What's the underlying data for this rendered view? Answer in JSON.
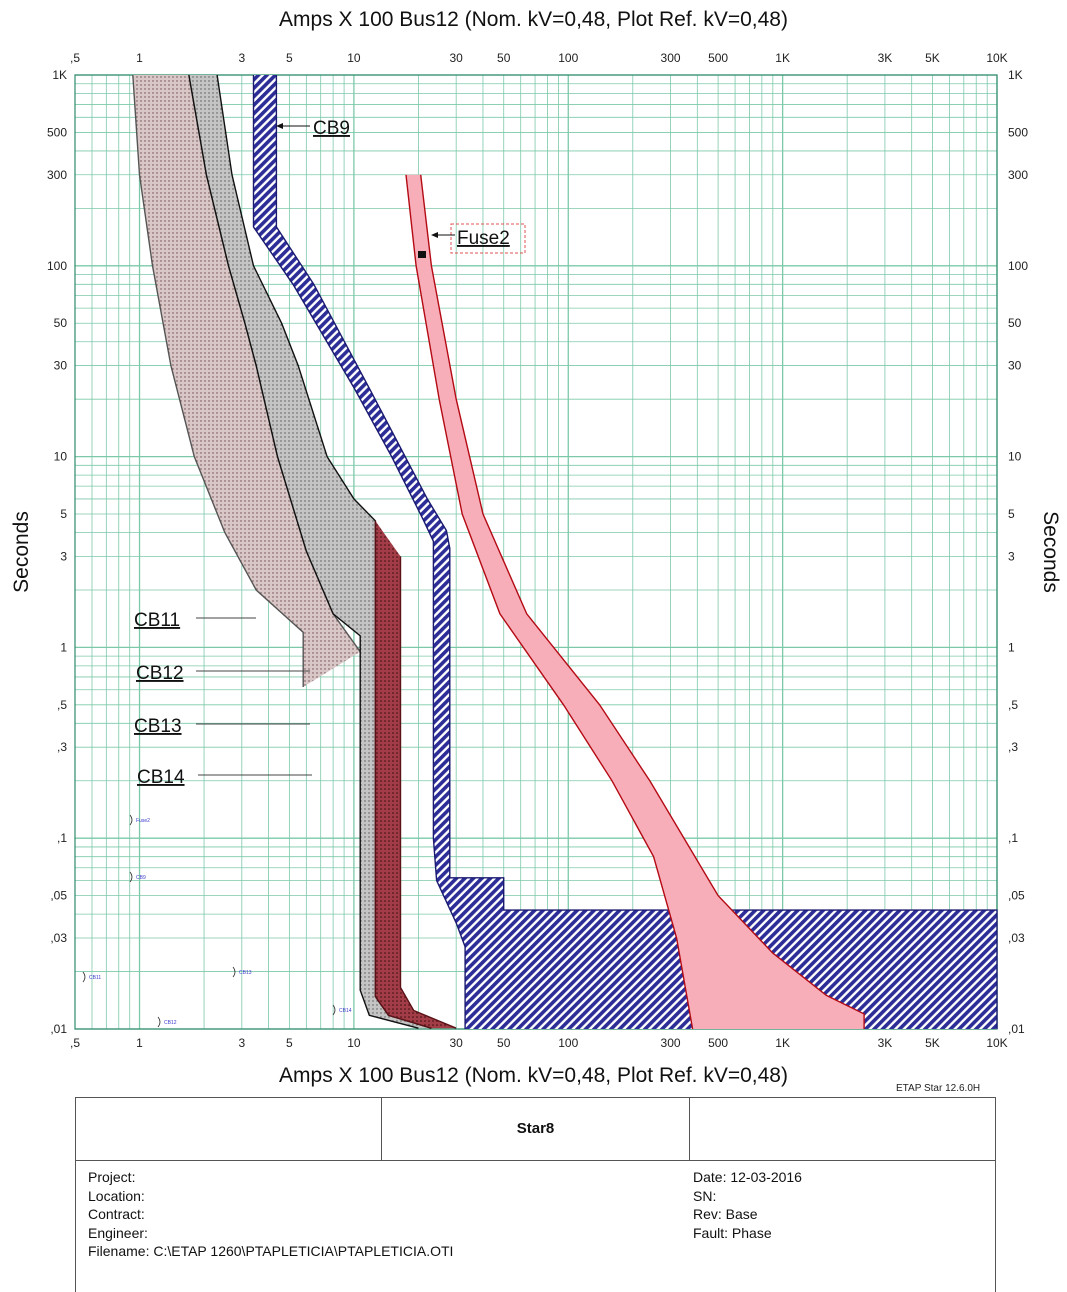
{
  "header": {
    "top_title": "Amps  X  100   Bus12 (Nom. kV=0,48, Plot Ref. kV=0,48)",
    "bottom_title": "Amps  X  100   Bus12 (Nom. kV=0,48, Plot Ref. kV=0,48)",
    "version": "ETAP Star 12.6.0H"
  },
  "chart_data": {
    "type": "line",
    "title": "Amps  X  100   Bus12 (Nom. kV=0,48, Plot Ref. kV=0,48)",
    "xlabel": "Amps  X  100",
    "ylabel": "Seconds",
    "x_scale": "log",
    "y_scale": "log",
    "xlim": [
      0.5,
      10000
    ],
    "ylim": [
      0.01,
      1000
    ],
    "grid": true,
    "x_ticks": [
      {
        "value": 0.5,
        "label": ",5"
      },
      {
        "value": 1,
        "label": "1"
      },
      {
        "value": 3,
        "label": "3"
      },
      {
        "value": 5,
        "label": "5"
      },
      {
        "value": 10,
        "label": "10"
      },
      {
        "value": 30,
        "label": "30"
      },
      {
        "value": 50,
        "label": "50"
      },
      {
        "value": 100,
        "label": "100"
      },
      {
        "value": 300,
        "label": "300"
      },
      {
        "value": 500,
        "label": "500"
      },
      {
        "value": 1000,
        "label": "1K"
      },
      {
        "value": 3000,
        "label": "3K"
      },
      {
        "value": 5000,
        "label": "5K"
      },
      {
        "value": 10000,
        "label": "10K"
      }
    ],
    "y_ticks": [
      {
        "value": 1000,
        "label": "1K"
      },
      {
        "value": 500,
        "label": "500"
      },
      {
        "value": 300,
        "label": "300"
      },
      {
        "value": 100,
        "label": "100"
      },
      {
        "value": 50,
        "label": "50"
      },
      {
        "value": 30,
        "label": "30"
      },
      {
        "value": 10,
        "label": "10"
      },
      {
        "value": 5,
        "label": "5"
      },
      {
        "value": 3,
        "label": "3"
      },
      {
        "value": 1,
        "label": "1"
      },
      {
        "value": 0.5,
        "label": ",5"
      },
      {
        "value": 0.3,
        "label": ",3"
      },
      {
        "value": 0.1,
        "label": ",1"
      },
      {
        "value": 0.05,
        "label": ",05"
      },
      {
        "value": 0.03,
        "label": ",03"
      },
      {
        "value": 0.01,
        "label": ",01"
      }
    ],
    "series": [
      {
        "name": "CB11",
        "style": "band",
        "fill": "#d7c3c3",
        "pattern": "dots",
        "stroke": "#555555",
        "upper": [
          [
            0.93,
            1000
          ],
          [
            1,
            300
          ],
          [
            1.15,
            100
          ],
          [
            1.4,
            30
          ],
          [
            1.8,
            10
          ],
          [
            2.5,
            4
          ],
          [
            3.5,
            2
          ],
          [
            5.8,
            1.2
          ],
          [
            5.8,
            0.62
          ]
        ],
        "lower": [
          [
            1.7,
            1000
          ],
          [
            2.05,
            300
          ],
          [
            2.6,
            100
          ],
          [
            3.1,
            50
          ],
          [
            3.5,
            30
          ],
          [
            4.4,
            10
          ],
          [
            6,
            3.2
          ],
          [
            8,
            1.5
          ],
          [
            10.7,
            0.95
          ],
          [
            10.7,
            0.95
          ]
        ]
      },
      {
        "name": "CB12",
        "style": "band",
        "fill": "#c9c9c9",
        "pattern": "dots",
        "stroke": "#111111",
        "upper": [
          [
            1.7,
            1000
          ],
          [
            2.05,
            300
          ],
          [
            2.6,
            100
          ],
          [
            3.1,
            50
          ],
          [
            3.5,
            30
          ],
          [
            4.4,
            10
          ],
          [
            6,
            3.2
          ],
          [
            8,
            1.5
          ],
          [
            10.7,
            1.15
          ],
          [
            10.7,
            0.016
          ],
          [
            11.8,
            0.0118
          ],
          [
            20,
            0.0101
          ]
        ],
        "lower": [
          [
            2.3,
            1000
          ],
          [
            2.7,
            300
          ],
          [
            3.4,
            100
          ],
          [
            4.6,
            50
          ],
          [
            5.5,
            30
          ],
          [
            7.5,
            10
          ],
          [
            10,
            6
          ],
          [
            12.6,
            4.6
          ],
          [
            12.6,
            0.0148
          ],
          [
            14.5,
            0.0118
          ],
          [
            23,
            0.0101
          ]
        ]
      },
      {
        "name": "CB13",
        "style": "band",
        "fill": "#a0404a",
        "pattern": "dots",
        "stroke": "#5a1216",
        "upper": [
          [
            12.6,
            4.6
          ],
          [
            12.6,
            0.0148
          ],
          [
            14.5,
            0.0118
          ],
          [
            23,
            0.0101
          ]
        ],
        "lower": [
          [
            16.5,
            3.0
          ],
          [
            16.5,
            0.0165
          ],
          [
            19,
            0.0125
          ],
          [
            30,
            0.0101
          ]
        ]
      },
      {
        "name": "CB9",
        "style": "band",
        "fill": "#3c3ca8",
        "pattern": "hatch",
        "stroke": "#1a1a70",
        "upper": [
          [
            3.4,
            1000
          ],
          [
            3.4,
            160
          ],
          [
            5.2,
            80
          ],
          [
            10,
            23
          ],
          [
            15,
            10
          ],
          [
            21,
            4.7
          ],
          [
            23.5,
            3.6
          ],
          [
            23.5,
            0.1
          ],
          [
            24.3,
            0.06
          ],
          [
            30,
            0.036
          ],
          [
            33,
            0.027
          ],
          [
            33,
            0.01
          ]
        ],
        "lower": [
          [
            4.35,
            1000
          ],
          [
            4.35,
            160
          ],
          [
            6.5,
            80
          ],
          [
            12,
            22
          ],
          [
            22,
            6
          ],
          [
            27,
            4.1
          ],
          [
            28,
            3.3
          ],
          [
            28,
            0.062
          ],
          [
            50,
            0.062
          ],
          [
            50,
            0.042
          ],
          [
            10000,
            0.042
          ],
          [
            10000,
            0.01
          ]
        ]
      },
      {
        "name": "Fuse2",
        "style": "band",
        "fill": "#f7aeb8",
        "pattern": "solid",
        "stroke": "#b40a14",
        "upper": [
          [
            17.5,
            300
          ],
          [
            19.5,
            100
          ],
          [
            25,
            20
          ],
          [
            32,
            5
          ],
          [
            48,
            1.5
          ],
          [
            95,
            0.5
          ],
          [
            160,
            0.2
          ],
          [
            250,
            0.08
          ],
          [
            320,
            0.03
          ],
          [
            380,
            0.01
          ]
        ],
        "lower": [
          [
            20.5,
            300
          ],
          [
            23,
            100
          ],
          [
            30,
            20
          ],
          [
            40,
            5
          ],
          [
            64,
            1.5
          ],
          [
            140,
            0.5
          ],
          [
            240,
            0.2
          ],
          [
            500,
            0.05
          ],
          [
            900,
            0.025
          ],
          [
            1600,
            0.015
          ],
          [
            2400,
            0.012
          ],
          [
            2400,
            0.01
          ]
        ]
      }
    ],
    "annotations": [
      "CB9",
      "Fuse2",
      "CB11",
      "CB12",
      "CB13",
      "CB14"
    ],
    "small_annotations": [
      "Fuse2",
      "CB9",
      "CB11",
      "CB13",
      "CB12",
      "CB14"
    ]
  },
  "colors": {
    "grid": "#7cc9aa",
    "frame": "#2e8b6a",
    "cb9": "#3c3ca8",
    "fuse": "#b40a14",
    "small_label": "#3a3acc"
  },
  "title_block": {
    "name": "Star8",
    "project_label": "Project:",
    "location_label": "Location:",
    "contract_label": "Contract:",
    "engineer_label": "Engineer:",
    "filename": "Filename:  C:\\ETAP 1260\\PTAPLETICIA\\PTAPLETICIA.OTI",
    "date": "Date:  12-03-2016",
    "sn": "SN:",
    "rev": "Rev:   Base",
    "fault": "Fault:  Phase"
  }
}
